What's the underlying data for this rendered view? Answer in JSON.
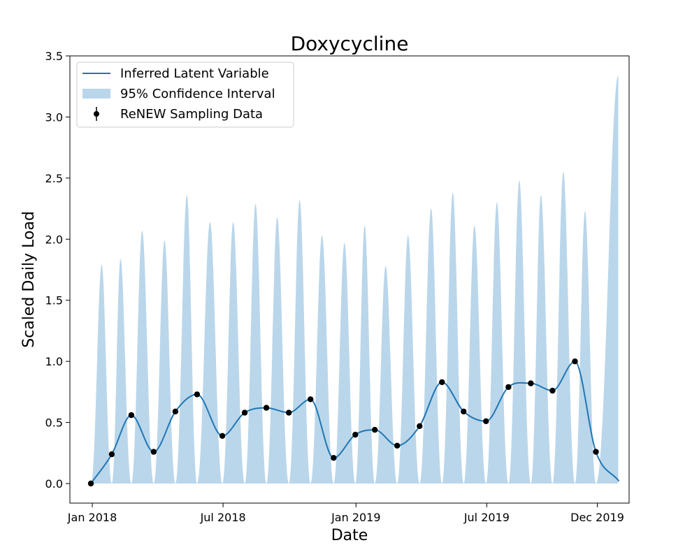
{
  "chart_data": {
    "type": "line",
    "title": "Doxycycline",
    "xlabel": "Date",
    "ylabel": "Scaled Daily Load",
    "xlim": [
      "2017-12-01",
      "2020-01-14"
    ],
    "ylim": [
      -0.16,
      3.5
    ],
    "grid": false,
    "legend_position": "top-left",
    "x_ticks": [
      {
        "date": "2018-01-01",
        "label": "Jan 2018"
      },
      {
        "date": "2018-07-01",
        "label": "Jul 2018"
      },
      {
        "date": "2019-01-01",
        "label": "Jan 2019"
      },
      {
        "date": "2019-07-01",
        "label": "Jul 2019"
      },
      {
        "date": "2019-12-01",
        "label": "Dec 2019"
      }
    ],
    "y_ticks": [
      {
        "value": 0.0,
        "label": "0.0"
      },
      {
        "value": 0.5,
        "label": "0.5"
      },
      {
        "value": 1.0,
        "label": "1.0"
      },
      {
        "value": 1.5,
        "label": "1.5"
      },
      {
        "value": 2.0,
        "label": "2.0"
      },
      {
        "value": 2.5,
        "label": "2.5"
      },
      {
        "value": 3.0,
        "label": "3.0"
      },
      {
        "value": 3.5,
        "label": "3.5"
      }
    ],
    "legend": [
      {
        "label": "Inferred Latent Variable",
        "kind": "line"
      },
      {
        "label": "95% Confidence Interval",
        "kind": "patch"
      },
      {
        "label": "ReNEW Sampling Data",
        "kind": "errorbar"
      }
    ],
    "colors": {
      "line": "#1f77b4",
      "band": "#bad6ea",
      "points": "#000000"
    },
    "sampling_data": [
      {
        "x": "2017-12-30",
        "y": 0.0
      },
      {
        "x": "2018-01-28",
        "y": 0.24
      },
      {
        "x": "2018-02-24",
        "y": 0.56
      },
      {
        "x": "2018-03-27",
        "y": 0.26
      },
      {
        "x": "2018-04-26",
        "y": 0.59
      },
      {
        "x": "2018-05-26",
        "y": 0.73
      },
      {
        "x": "2018-06-30",
        "y": 0.39
      },
      {
        "x": "2018-07-31",
        "y": 0.58
      },
      {
        "x": "2018-08-30",
        "y": 0.62
      },
      {
        "x": "2018-09-30",
        "y": 0.58
      },
      {
        "x": "2018-10-30",
        "y": 0.69
      },
      {
        "x": "2018-12-01",
        "y": 0.21
      },
      {
        "x": "2018-12-31",
        "y": 0.4
      },
      {
        "x": "2019-01-27",
        "y": 0.44
      },
      {
        "x": "2019-02-27",
        "y": 0.31
      },
      {
        "x": "2019-03-30",
        "y": 0.47
      },
      {
        "x": "2019-04-30",
        "y": 0.83
      },
      {
        "x": "2019-05-30",
        "y": 0.59
      },
      {
        "x": "2019-06-30",
        "y": 0.51
      },
      {
        "x": "2019-07-31",
        "y": 0.79
      },
      {
        "x": "2019-08-31",
        "y": 0.82
      },
      {
        "x": "2019-09-30",
        "y": 0.76
      },
      {
        "x": "2019-10-31",
        "y": 1.0
      },
      {
        "x": "2019-11-29",
        "y": 0.26
      }
    ],
    "latent_end": {
      "x": "2019-12-31",
      "y": 0.02
    },
    "ci_peaks": [
      {
        "x": "2018-01-14",
        "y": 1.79
      },
      {
        "x": "2018-02-09",
        "y": 1.84
      },
      {
        "x": "2018-03-11",
        "y": 2.07
      },
      {
        "x": "2018-04-11",
        "y": 1.99
      },
      {
        "x": "2018-05-12",
        "y": 2.36
      },
      {
        "x": "2018-06-13",
        "y": 2.14
      },
      {
        "x": "2018-07-15",
        "y": 2.14
      },
      {
        "x": "2018-08-15",
        "y": 2.29
      },
      {
        "x": "2018-09-14",
        "y": 2.18
      },
      {
        "x": "2018-10-15",
        "y": 2.32
      },
      {
        "x": "2018-11-15",
        "y": 2.03
      },
      {
        "x": "2018-12-16",
        "y": 1.97
      },
      {
        "x": "2019-01-13",
        "y": 2.11
      },
      {
        "x": "2019-02-11",
        "y": 1.78
      },
      {
        "x": "2019-03-14",
        "y": 2.03
      },
      {
        "x": "2019-04-15",
        "y": 2.25
      },
      {
        "x": "2019-05-15",
        "y": 2.38
      },
      {
        "x": "2019-06-14",
        "y": 2.11
      },
      {
        "x": "2019-07-15",
        "y": 2.3
      },
      {
        "x": "2019-08-15",
        "y": 2.48
      },
      {
        "x": "2019-09-14",
        "y": 2.36
      },
      {
        "x": "2019-10-15",
        "y": 2.55
      },
      {
        "x": "2019-11-14",
        "y": 2.23
      },
      {
        "x": "2019-12-30",
        "y": 3.34
      }
    ]
  }
}
